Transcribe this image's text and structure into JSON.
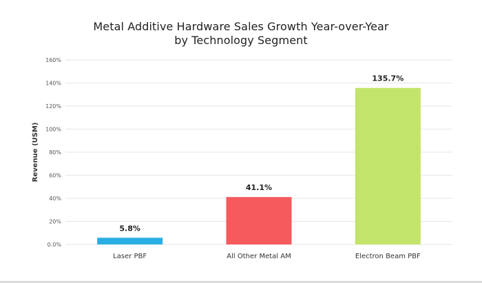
{
  "chart_data": {
    "type": "bar",
    "title": "Metal Additive Hardware Sales Growth Year-over-Year",
    "subtitle": "by Technology Segment",
    "ylabel": "Revenue (USM)",
    "xlabel": "",
    "ylim": [
      0,
      160
    ],
    "y_ticks": [
      {
        "value": 0,
        "label": "0.0%"
      },
      {
        "value": 20,
        "label": "20%"
      },
      {
        "value": 40,
        "label": "40%"
      },
      {
        "value": 60,
        "label": "60%"
      },
      {
        "value": 80,
        "label": "80%"
      },
      {
        "value": 100,
        "label": "100%"
      },
      {
        "value": 120,
        "label": "120%"
      },
      {
        "value": 140,
        "label": "140%"
      },
      {
        "value": 160,
        "label": "160%"
      }
    ],
    "grid": true,
    "categories": [
      "Laser PBF",
      "All Other Metal AM",
      "Electron Beam PBF"
    ],
    "values": [
      5.8,
      41.1,
      135.7
    ],
    "data_labels": [
      "5.8%",
      "41.1%",
      "135.7%"
    ],
    "colors": [
      "#29aee3",
      "#f55a5c",
      "#c3e46a"
    ]
  }
}
